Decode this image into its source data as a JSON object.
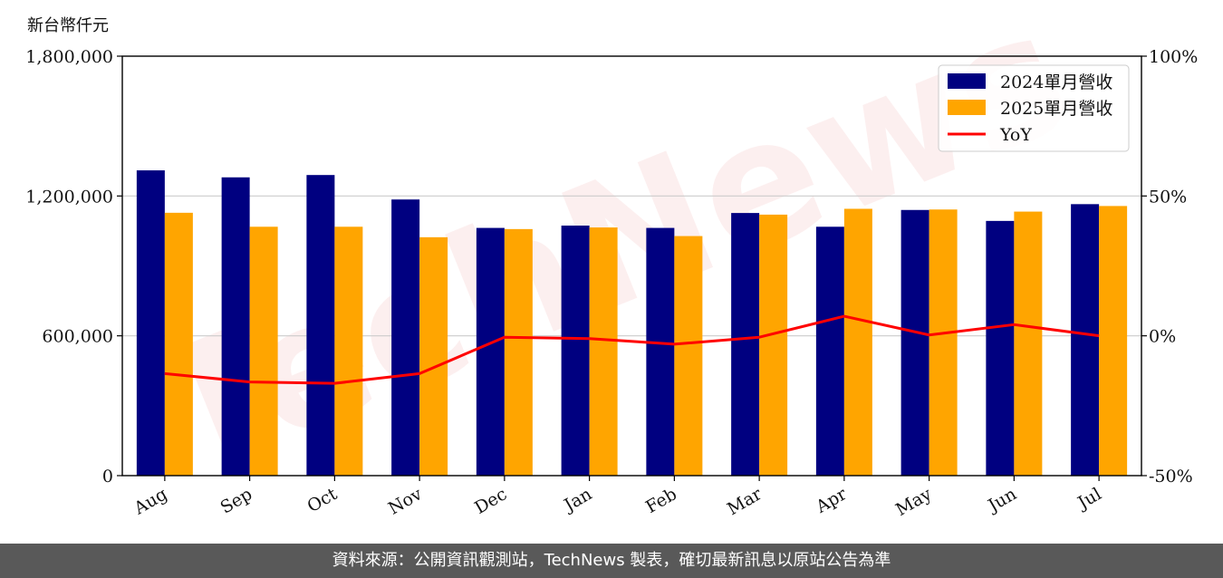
{
  "unit_label": "新台幣仟元",
  "footer_text": "資料來源：公開資訊觀測站，TechNews 製表，確切最新訊息以原站公告為準",
  "watermark_text": "TechNews",
  "colors": {
    "series_2024": "#000080",
    "series_2025": "#ffa500",
    "yoy": "#ff0000",
    "grid": "#cccccc",
    "footer_bg": "#595959"
  },
  "chart_data": {
    "type": "bar",
    "categories": [
      "Aug",
      "Sep",
      "Oct",
      "Nov",
      "Dec",
      "Jan",
      "Feb",
      "Mar",
      "Apr",
      "May",
      "Jun",
      "Jul"
    ],
    "series": [
      {
        "name": "2024單月營收",
        "values": [
          1310000,
          1280000,
          1290000,
          1185000,
          1063000,
          1073000,
          1063000,
          1127000,
          1068000,
          1140000,
          1093000,
          1165000
        ]
      },
      {
        "name": "2025單月營收",
        "values": [
          1128000,
          1068000,
          1068000,
          1023000,
          1058000,
          1065000,
          1028000,
          1120000,
          1145000,
          1142000,
          1133000,
          1157000
        ]
      }
    ],
    "line_series": {
      "name": "YoY",
      "axis": "right",
      "values": [
        -13.5,
        -16.5,
        -17,
        -13.5,
        -0.5,
        -1,
        -3,
        -0.5,
        7,
        0.3,
        4,
        0
      ]
    },
    "ylim": [
      0,
      1800000
    ],
    "yticks": [
      0,
      600000,
      1200000,
      1800000
    ],
    "ytick_labels": [
      "0",
      "600,000",
      "1,200,000",
      "1,800,000"
    ],
    "y2lim": [
      -50,
      100
    ],
    "y2ticks": [
      -50,
      0,
      50,
      100
    ],
    "y2tick_labels": [
      "-50%",
      "0%",
      "50%",
      "100%"
    ],
    "grid": true,
    "legend_position": "top-right"
  }
}
